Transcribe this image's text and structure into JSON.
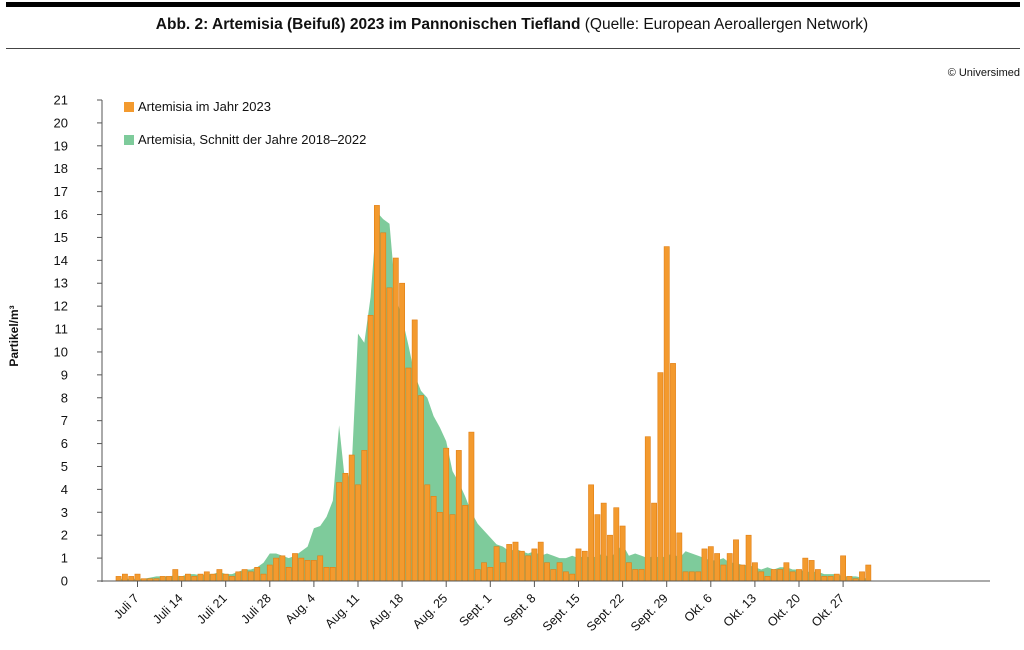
{
  "header": {
    "title_bold": "Abb. 2: Artemisia (Beifuß) 2023 im Pannonischen Tiefland",
    "title_source": "(Quelle: European Aeroallergen Network)",
    "copyright": "© Universimed"
  },
  "colors": {
    "bar": "#F39A2E",
    "bar_stroke": "#E07E12",
    "area": "#7ECB9B",
    "axis": "#555555"
  },
  "chart_data": {
    "type": "bar",
    "ylabel": "Partikel/m³",
    "ylim": [
      0,
      21
    ],
    "yticks": [
      "0",
      "1",
      "2",
      "3",
      "4",
      "5",
      "6",
      "7",
      "8",
      "9",
      "10",
      "11",
      "12",
      "13",
      "14",
      "15",
      "16",
      "17",
      "18",
      "19",
      "20",
      "21"
    ],
    "x_tick_labels": [
      "Juli 7",
      "Juli 14",
      "Juli 21",
      "Juli 28",
      "Aug. 4",
      "Aug. 11",
      "Aug. 18",
      "Aug. 25",
      "Sept. 1",
      "Sept. 8",
      "Sept. 15",
      "Sept. 22",
      "Sept. 29",
      "Okt. 6",
      "Okt. 13",
      "Okt. 20",
      "Okt. 27"
    ],
    "legend": [
      {
        "name": "Artemisia im Jahr 2023",
        "color": "#F39A2E"
      },
      {
        "name": "Artemisia, Schnitt der Jahre 2018–2022",
        "color": "#7ECB9B"
      }
    ],
    "start_date": "2023-07-03",
    "series": [
      {
        "name": "Artemisia im Jahr 2023",
        "type": "bar",
        "values": [
          0.2,
          0.3,
          0.2,
          0.3,
          0.1,
          0.1,
          0.1,
          0.2,
          0.2,
          0.5,
          0.2,
          0.3,
          0.2,
          0.3,
          0.4,
          0.3,
          0.5,
          0.3,
          0.2,
          0.4,
          0.5,
          0.4,
          0.6,
          0.3,
          0.7,
          1.0,
          1.1,
          0.6,
          1.2,
          1.0,
          0.9,
          0.9,
          1.1,
          0.6,
          0.6,
          4.3,
          4.7,
          5.5,
          4.2,
          5.7,
          11.6,
          16.4,
          15.2,
          12.8,
          14.1,
          13.0,
          9.3,
          11.4,
          8.1,
          4.2,
          3.7,
          3.0,
          5.8,
          2.9,
          5.7,
          3.3,
          6.5,
          0.5,
          0.8,
          0.6,
          1.5,
          0.8,
          1.6,
          1.7,
          1.3,
          1.1,
          1.4,
          1.7,
          0.8,
          0.5,
          0.8,
          0.4,
          0.3,
          1.4,
          1.3,
          4.2,
          2.9,
          3.4,
          2.0,
          3.2,
          2.4,
          0.8,
          0.5,
          0.5,
          6.3,
          3.4,
          9.1,
          14.6,
          9.5,
          2.1,
          0.4,
          0.4,
          0.4,
          1.4,
          1.5,
          1.2,
          0.7,
          1.2,
          1.8,
          0.7,
          2.0,
          0.8,
          0.4,
          0.2,
          0.5,
          0.5,
          0.8,
          0.4,
          0.5,
          1.0,
          0.9,
          0.5,
          0.2,
          0.2,
          0.3,
          1.1,
          0.2,
          0.1,
          0.4,
          0.7
        ]
      },
      {
        "name": "Artemisia, Schnitt der Jahre 2018–2022",
        "type": "area",
        "values": [
          0.1,
          0.1,
          0.1,
          0.1,
          0.1,
          0.15,
          0.2,
          0.2,
          0.2,
          0.25,
          0.2,
          0.3,
          0.3,
          0.25,
          0.3,
          0.3,
          0.4,
          0.3,
          0.3,
          0.4,
          0.5,
          0.5,
          0.6,
          0.8,
          1.2,
          1.2,
          1.1,
          1.0,
          1.1,
          1.3,
          1.5,
          2.3,
          2.4,
          2.8,
          3.5,
          6.8,
          4.2,
          5.0,
          10.8,
          10.4,
          12.4,
          16.1,
          15.8,
          15.6,
          12.4,
          11.5,
          10.3,
          9.0,
          8.3,
          8.0,
          7.2,
          6.7,
          6.1,
          4.8,
          4.3,
          3.7,
          3.0,
          2.5,
          2.2,
          1.9,
          1.6,
          1.5,
          1.3,
          1.4,
          1.3,
          1.2,
          1.3,
          1.1,
          1.2,
          1.1,
          1.0,
          1.0,
          1.1,
          1.0,
          1.1,
          1.0,
          1.1,
          1.2,
          1.0,
          1.3,
          1.6,
          1.1,
          1.2,
          1.1,
          1.0,
          1.1,
          1.0,
          1.1,
          1.2,
          1.0,
          1.3,
          1.2,
          1.1,
          1.0,
          0.9,
          0.9,
          1.0,
          0.8,
          0.8,
          0.7,
          0.7,
          0.6,
          0.5,
          0.6,
          0.5,
          0.6,
          0.6,
          0.5,
          0.5,
          0.4,
          0.4,
          0.4,
          0.3,
          0.3,
          0.3,
          0.2,
          0.2,
          0.2,
          0.15,
          0.1
        ]
      }
    ]
  }
}
